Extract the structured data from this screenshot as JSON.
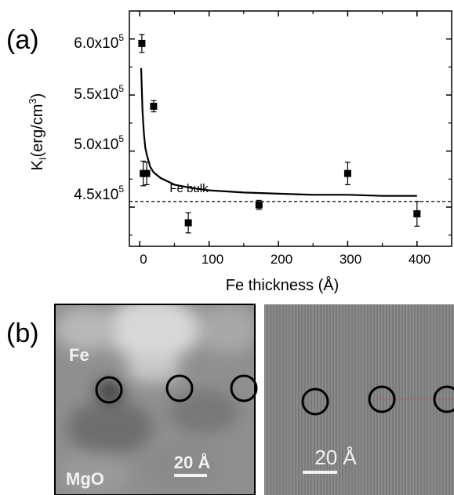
{
  "panel_a": {
    "label": "(a)",
    "xlabel": "Fe thickness (Å)",
    "ylabel_main": "K",
    "ylabel_sub": "I",
    "ylabel_unit": "(erg/cm",
    "ylabel_unit_sup": "3",
    "ylabel_close": ")",
    "bulk_label": "Fe bulk",
    "x_ticks": [
      "0",
      "100",
      "200",
      "300",
      "400"
    ],
    "y_ticks": [
      {
        "mant": "4.5x10",
        "exp": "5"
      },
      {
        "mant": "5.0x10",
        "exp": "5"
      },
      {
        "mant": "5.5x10",
        "exp": "5"
      },
      {
        "mant": "6.0x10",
        "exp": "5"
      }
    ]
  },
  "panel_b": {
    "label": "(b)",
    "left_top_label": "Fe",
    "left_bottom_label": "MgO",
    "left_scale": "20 Å",
    "right_scale": "20 Å"
  },
  "chart_data": {
    "type": "scatter",
    "xlabel": "Fe thickness (Å)",
    "ylabel": "KI(erg/cm3)",
    "xlim": [
      -15,
      450
    ],
    "ylim": [
      415000,
      625000
    ],
    "x_tick_values": [
      0,
      100,
      200,
      300,
      400
    ],
    "y_tick_values": [
      450000,
      500000,
      550000,
      600000
    ],
    "grid": false,
    "series": [
      {
        "x": [
          3,
          5,
          10,
          20,
          70,
          172,
          300,
          400
        ],
        "y": [
          596000,
          480000,
          480000,
          540000,
          436000,
          452000,
          480000,
          444000
        ],
        "err": [
          8000,
          11000,
          10000,
          5000,
          9000,
          4000,
          10000,
          11000
        ]
      }
    ],
    "fit_curve": {
      "x": [
        2,
        4,
        6,
        8,
        10,
        15,
        20,
        30,
        50,
        75,
        100,
        150,
        200,
        250,
        300,
        350,
        400
      ],
      "y": [
        574000,
        535000,
        515000,
        503000,
        497000,
        486000,
        481000,
        476000,
        470000,
        467000,
        465000,
        463000,
        462000,
        461000,
        461000,
        460000,
        460000
      ]
    },
    "reference_line": {
      "y": 455000
    }
  }
}
